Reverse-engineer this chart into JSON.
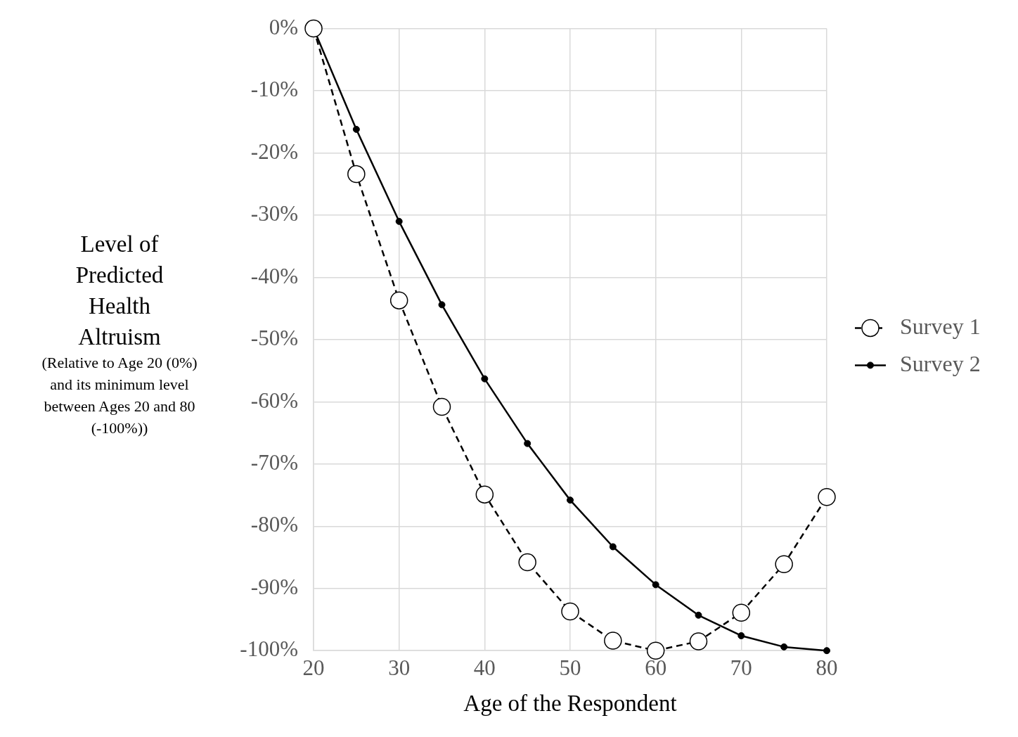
{
  "chart_data": {
    "type": "line",
    "xlabel": "Age of the Respondent",
    "ylabel": "Level of Predicted Health Altruism",
    "annotations": [
      "(Relative to Age 20 (0%) and its minimum level between Ages 20 and 80 (-100%))"
    ],
    "x": [
      20,
      25,
      30,
      35,
      40,
      45,
      50,
      55,
      60,
      65,
      70,
      75,
      80
    ],
    "series": [
      {
        "name": "Survey 1",
        "color": "#000000",
        "marker": "circle",
        "line_style": "dashed",
        "values": [
          0,
          -23.4,
          -43.7,
          -60.8,
          -74.9,
          -85.8,
          -93.7,
          -98.4,
          -100,
          -98.5,
          -93.9,
          -86.1,
          -75.3
        ]
      },
      {
        "name": "Survey 2",
        "color": "#000000",
        "marker": "circle",
        "line_style": "solid",
        "values": [
          0,
          -16.2,
          -31.0,
          -44.4,
          -56.3,
          -66.7,
          -75.8,
          -83.3,
          -89.4,
          -94.3,
          -97.6,
          -99.4,
          -100
        ]
      }
    ],
    "xlim": [
      20,
      80
    ],
    "xticks": [
      20,
      30,
      40,
      50,
      60,
      70,
      80
    ],
    "ylim": [
      -100,
      0
    ],
    "yticks": [
      {
        "value": 0,
        "label": "0%"
      },
      {
        "value": -10,
        "label": "-10%"
      },
      {
        "value": -20,
        "label": "-20%"
      },
      {
        "value": -30,
        "label": "-30%"
      },
      {
        "value": -40,
        "label": "-40%"
      },
      {
        "value": -50,
        "label": "-50%"
      },
      {
        "value": -60,
        "label": "-60%"
      },
      {
        "value": -70,
        "label": "-70%"
      },
      {
        "value": -80,
        "label": "-80%"
      },
      {
        "value": -90,
        "label": "-90%"
      },
      {
        "value": -100,
        "label": "-100%"
      }
    ],
    "grid": true,
    "legend": "right"
  }
}
